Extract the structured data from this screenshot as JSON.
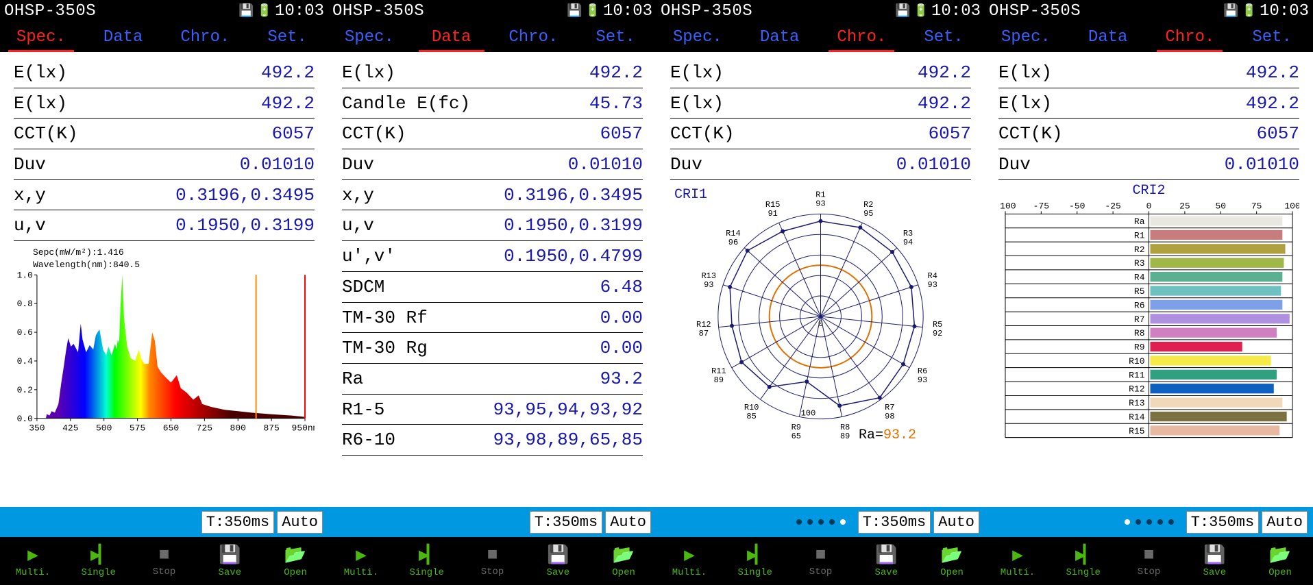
{
  "device": {
    "model": "OHSP-350S",
    "time": "10:03"
  },
  "tabs": {
    "spec": "Spec.",
    "data": "Data",
    "chro": "Chro.",
    "set": "Set."
  },
  "ctrl": {
    "timing": "T:350ms",
    "auto": "Auto"
  },
  "bottom": {
    "multi": "Multi.",
    "single": "Single",
    "stop": "Stop",
    "save": "Save",
    "open": "Open"
  },
  "panel1": {
    "rows": [
      {
        "label": "E(lx)",
        "value": "492.2"
      },
      {
        "label": "E(lx)",
        "value": "492.2"
      },
      {
        "label": "CCT(K)",
        "value": "6057"
      },
      {
        "label": "Duv",
        "value": "0.01010"
      },
      {
        "label": "x,y",
        "value": "0.3196,0.3495"
      },
      {
        "label": "u,v",
        "value": "0.1950,0.3199"
      }
    ],
    "spectrum": {
      "meta1": "Sepc(mW/m²):1.416",
      "meta2": "Wavelength(nm):840.5",
      "xrange": {
        "min": 350,
        "max": 950,
        "ticks": [
          350,
          425,
          500,
          575,
          650,
          725,
          800,
          875,
          950
        ],
        "unit": "nm"
      },
      "yrange": {
        "min": 0,
        "max": 1,
        "ticks": [
          0.0,
          0.2,
          0.4,
          0.6,
          0.8,
          1.0
        ]
      },
      "gradient_stops": [
        {
          "nm": 380,
          "color": "#5a00b0"
        },
        {
          "nm": 440,
          "color": "#0000ff"
        },
        {
          "nm": 490,
          "color": "#00ffd0"
        },
        {
          "nm": 510,
          "color": "#00ff00"
        },
        {
          "nm": 570,
          "color": "#ffff00"
        },
        {
          "nm": 590,
          "color": "#ff8800"
        },
        {
          "nm": 650,
          "color": "#ff0000"
        },
        {
          "nm": 780,
          "color": "#4a0000"
        }
      ],
      "curve": [
        [
          370,
          0.0
        ],
        [
          372,
          0.03
        ],
        [
          378,
          0.02
        ],
        [
          383,
          0.05
        ],
        [
          390,
          0.04
        ],
        [
          398,
          0.1
        ],
        [
          405,
          0.26
        ],
        [
          410,
          0.36
        ],
        [
          415,
          0.47
        ],
        [
          420,
          0.56
        ],
        [
          426,
          0.5
        ],
        [
          432,
          0.52
        ],
        [
          437,
          0.49
        ],
        [
          442,
          0.46
        ],
        [
          448,
          0.66
        ],
        [
          452,
          0.55
        ],
        [
          460,
          0.46
        ],
        [
          468,
          0.51
        ],
        [
          476,
          0.48
        ],
        [
          482,
          0.58
        ],
        [
          490,
          0.62
        ],
        [
          498,
          0.48
        ],
        [
          505,
          0.44
        ],
        [
          510,
          0.5
        ],
        [
          517,
          0.44
        ],
        [
          525,
          0.52
        ],
        [
          528,
          0.48
        ],
        [
          531,
          0.55
        ],
        [
          534,
          0.52
        ],
        [
          537,
          0.78
        ],
        [
          541,
          1.0
        ],
        [
          545,
          0.7
        ],
        [
          552,
          0.5
        ],
        [
          560,
          0.42
        ],
        [
          570,
          0.4
        ],
        [
          578,
          0.48
        ],
        [
          583,
          0.42
        ],
        [
          590,
          0.38
        ],
        [
          600,
          0.38
        ],
        [
          608,
          0.6
        ],
        [
          614,
          0.54
        ],
        [
          620,
          0.36
        ],
        [
          628,
          0.32
        ],
        [
          640,
          0.28
        ],
        [
          650,
          0.25
        ],
        [
          663,
          0.3
        ],
        [
          672,
          0.21
        ],
        [
          685,
          0.18
        ],
        [
          700,
          0.13
        ],
        [
          712,
          0.16
        ],
        [
          720,
          0.1
        ],
        [
          740,
          0.08
        ],
        [
          770,
          0.06
        ],
        [
          800,
          0.05
        ],
        [
          830,
          0.04
        ],
        [
          870,
          0.03
        ],
        [
          920,
          0.02
        ],
        [
          950,
          0.01
        ]
      ],
      "marker_nm": 840.5,
      "cursor_nm": 950,
      "marker_color": "#ff8c00",
      "cursor_color": "#ff0000"
    }
  },
  "panel2": {
    "rows": [
      {
        "label": "E(lx)",
        "value": "492.2"
      },
      {
        "label": "Candle E(fc)",
        "value": "45.73"
      },
      {
        "label": "CCT(K)",
        "value": "6057"
      },
      {
        "label": "Duv",
        "value": "0.01010"
      },
      {
        "label": "x,y",
        "value": "0.3196,0.3495"
      },
      {
        "label": "u,v",
        "value": "0.1950,0.3199"
      },
      {
        "label": "u',v'",
        "value": "0.1950,0.4799"
      },
      {
        "label": "SDCM",
        "value": "6.48"
      },
      {
        "label": "TM-30 Rf",
        "value": "0.00"
      },
      {
        "label": "TM-30 Rg",
        "value": "0.00"
      },
      {
        "label": "Ra",
        "value": "93.2"
      },
      {
        "label": "R1-5",
        "value": "93,95,94,93,92"
      },
      {
        "label": "R6-10",
        "value": "93,98,89,65,85"
      }
    ]
  },
  "panel3": {
    "rows": [
      {
        "label": "E(lx)",
        "value": "492.2"
      },
      {
        "label": "E(lx)",
        "value": "492.2"
      },
      {
        "label": "CCT(K)",
        "value": "6057"
      },
      {
        "label": "Duv",
        "value": "0.01010"
      }
    ],
    "radar": {
      "title": "CRI1",
      "ra_label": "Ra=",
      "ra_value": "93.2",
      "rings": {
        "ticks": [
          0,
          50,
          100
        ],
        "label_ticks": [
          0,
          100
        ]
      },
      "spokes": [
        {
          "name": "R1",
          "val": 93
        },
        {
          "name": "R2",
          "val": 95
        },
        {
          "name": "R3",
          "val": 94
        },
        {
          "name": "R4",
          "val": 93
        },
        {
          "name": "R5",
          "val": 92
        },
        {
          "name": "R6",
          "val": 93
        },
        {
          "name": "R7",
          "val": 98
        },
        {
          "name": "R8",
          "val": 89
        },
        {
          "name": "R9",
          "val": 65
        },
        {
          "name": "R10",
          "val": 85
        },
        {
          "name": "R11",
          "val": 89
        },
        {
          "name": "R12",
          "val": 87
        },
        {
          "name": "R13",
          "val": 93
        },
        {
          "name": "R14",
          "val": 96
        },
        {
          "name": "R15",
          "val": 91
        }
      ],
      "ring_color": "#1a1a70",
      "spoke_color": "#1a1a70",
      "polygon_color": "#1a1a70",
      "ref_circle_color": "#e07000",
      "ref_circle_radius": 50
    },
    "dots": {
      "count": 5,
      "active": 4
    }
  },
  "panel4": {
    "rows": [
      {
        "label": "E(lx)",
        "value": "492.2"
      },
      {
        "label": "E(lx)",
        "value": "492.2"
      },
      {
        "label": "CCT(K)",
        "value": "6057"
      },
      {
        "label": "Duv",
        "value": "0.01010"
      }
    ],
    "bar": {
      "title": "CRI2",
      "xrange": {
        "min": -100,
        "max": 100,
        "ticks": [
          -100,
          -75,
          -50,
          -25,
          0,
          25,
          50,
          75,
          100
        ]
      },
      "items": [
        {
          "name": "Ra",
          "val": 93,
          "color": "#e8e8e0"
        },
        {
          "name": "R1",
          "val": 93,
          "color": "#c77d7d"
        },
        {
          "name": "R2",
          "val": 95,
          "color": "#b0a040"
        },
        {
          "name": "R3",
          "val": 94,
          "color": "#a0b848"
        },
        {
          "name": "R4",
          "val": 93,
          "color": "#5ab090"
        },
        {
          "name": "R5",
          "val": 92,
          "color": "#6fc0c0"
        },
        {
          "name": "R6",
          "val": 93,
          "color": "#7ea0e8"
        },
        {
          "name": "R7",
          "val": 98,
          "color": "#b090e0"
        },
        {
          "name": "R8",
          "val": 89,
          "color": "#d080c0"
        },
        {
          "name": "R9",
          "val": 65,
          "color": "#e02050"
        },
        {
          "name": "R10",
          "val": 85,
          "color": "#f5ea48"
        },
        {
          "name": "R11",
          "val": 89,
          "color": "#30a080"
        },
        {
          "name": "R12",
          "val": 87,
          "color": "#1060c0"
        },
        {
          "name": "R13",
          "val": 93,
          "color": "#f0d8b8"
        },
        {
          "name": "R14",
          "val": 96,
          "color": "#7a7040"
        },
        {
          "name": "R15",
          "val": 91,
          "color": "#e8b8a0"
        }
      ]
    },
    "dots": {
      "count": 5,
      "active": 0
    }
  }
}
